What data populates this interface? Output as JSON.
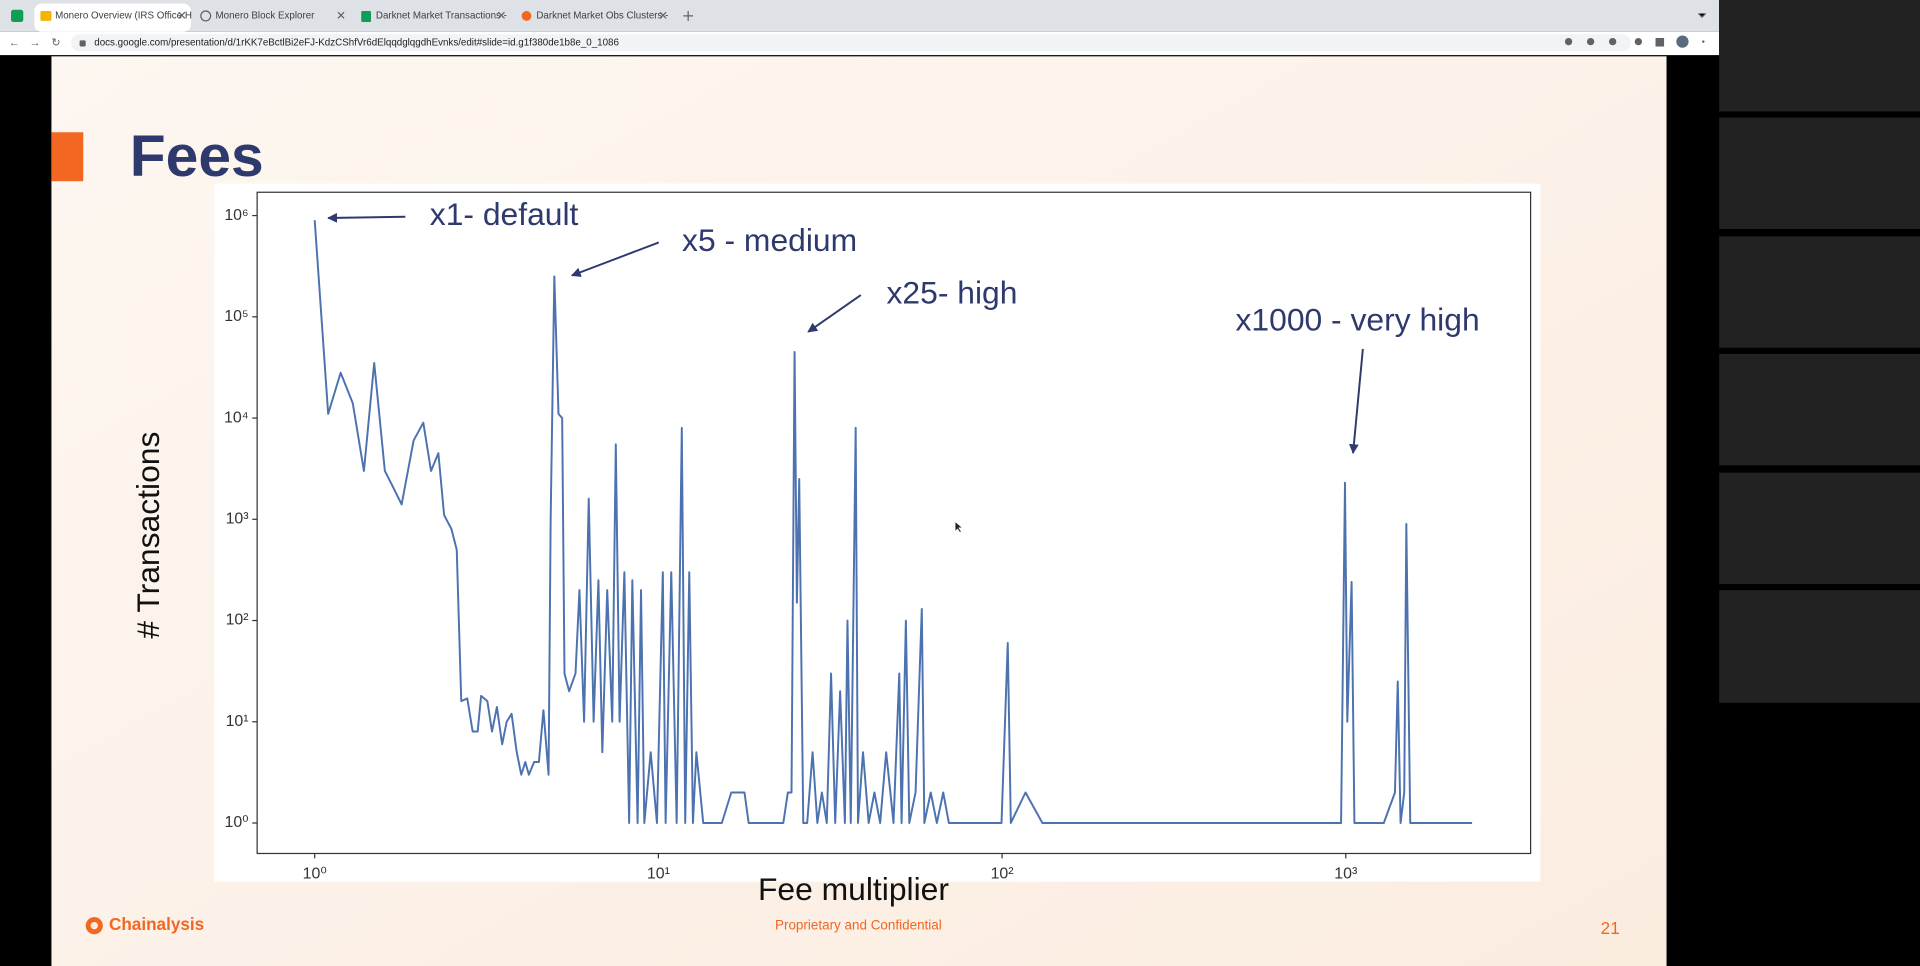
{
  "browser": {
    "tabs": [
      "Monero Overview (IRS Office H",
      "Monero Block Explorer",
      "Darknet Market Transactions -",
      "Darknet Market Obs Clusters -"
    ],
    "url": "docs.google.com/presentation/d/1rKK7eBctlBi2eFJ-KdzCShfVr6dElqqdglqgdhEvnks/edit#slide=id.g1f380de1b8e_0_1086"
  },
  "slide": {
    "title": "Fees",
    "brand": "Chainalysis",
    "footer": "Proprietary and Confidential",
    "page_number": "21"
  },
  "chart_data": {
    "type": "line",
    "x_label": "Fee multiplier",
    "y_label": "# Transactions",
    "log_x": true,
    "log_y": true,
    "xlim": [
      0.68,
      3450
    ],
    "ylim": [
      0.5,
      1700000
    ],
    "xticks": [
      {
        "value": 1,
        "label": "10⁰"
      },
      {
        "value": 10,
        "label": "10¹"
      },
      {
        "value": 100,
        "label": "10²"
      },
      {
        "value": 1000,
        "label": "10³"
      }
    ],
    "yticks": [
      {
        "value": 1,
        "label": "10⁰"
      },
      {
        "value": 10,
        "label": "10¹"
      },
      {
        "value": 100,
        "label": "10²"
      },
      {
        "value": 1000,
        "label": "10³"
      },
      {
        "value": 10000,
        "label": "10⁴"
      },
      {
        "value": 100000,
        "label": "10⁵"
      },
      {
        "value": 1000000,
        "label": "10⁶"
      }
    ],
    "annotations": [
      "x1- default",
      "x5 - medium",
      "x25- high",
      "x1000 - very high"
    ],
    "x": [
      1,
      1.094,
      1.19,
      1.29,
      1.39,
      1.49,
      1.6,
      1.7,
      1.79,
      1.94,
      2.07,
      2.18,
      2.29,
      2.38,
      2.5,
      2.59,
      2.67,
      2.78,
      2.88,
      2.98,
      3.05,
      3.18,
      3.28,
      3.39,
      3.51,
      3.62,
      3.74,
      3.87,
      3.99,
      4.1,
      4.2,
      4.35,
      4.49,
      4.63,
      4.79,
      4.86,
      4.98,
      5.12,
      5.25,
      5.33,
      5.5,
      5.74,
      5.89,
      6.08,
      6.27,
      6.48,
      6.69,
      6.87,
      7.1,
      7.34,
      7.52,
      7.71,
      7.96,
      8.22,
      8.4,
      8.7,
      8.9,
      9.1,
      9.5,
      9.9,
      10.3,
      10.5,
      10.9,
      11.3,
      11.7,
      11.97,
      12.3,
      12.6,
      12.9,
      13.5,
      14.4,
      15.3,
      16.3,
      17.8,
      18.3,
      23.1,
      23.8,
      24.4,
      24.9,
      25.3,
      25.7,
      26.4,
      27.1,
      28.1,
      29,
      29.9,
      30.9,
      31.8,
      32.7,
      33.8,
      34.9,
      35.5,
      36.3,
      37.5,
      38.1,
      39.4,
      40.9,
      42.5,
      44.2,
      46,
      48.3,
      50.2,
      51,
      52.5,
      53.7,
      56,
      58.4,
      59.4,
      62,
      64.6,
      67.4,
      70,
      72.6,
      86,
      99.6,
      103.9,
      106,
      117,
      131,
      969,
      995,
      1010,
      1040,
      1060,
      1290,
      1390,
      1417,
      1444,
      1480,
      1500,
      1540,
      2330
    ],
    "series": [
      {
        "color": "#4c72b0",
        "values": [
          900000,
          11000,
          28000,
          14000,
          3000,
          35000,
          3000,
          2000,
          1400,
          6000,
          9000,
          3000,
          4500,
          1100,
          800,
          500,
          16,
          17,
          8,
          8,
          18,
          16,
          8,
          14,
          6,
          10,
          12,
          5,
          3,
          4,
          3,
          4,
          4,
          13,
          3,
          1000,
          250000,
          11000,
          10000,
          30,
          20,
          30,
          200,
          10,
          1600,
          10,
          250,
          5,
          200,
          10,
          5500,
          10,
          300,
          1,
          250,
          1,
          200,
          1,
          5,
          1,
          300,
          1,
          300,
          1,
          8000,
          1,
          300,
          1,
          5,
          1,
          1,
          1,
          2,
          2,
          1,
          1,
          2,
          2,
          45000,
          150,
          2500,
          1,
          1,
          5,
          1,
          2,
          1,
          30,
          1,
          20,
          1,
          100,
          1,
          8000,
          1,
          5,
          1,
          2,
          1,
          5,
          1,
          30,
          1,
          100,
          1,
          2,
          130,
          1,
          2,
          1,
          2,
          1,
          1,
          1,
          1,
          60,
          1,
          2,
          1,
          1,
          2300,
          10,
          240,
          1,
          1,
          2,
          25,
          1,
          2,
          900,
          1,
          1
        ]
      }
    ]
  }
}
